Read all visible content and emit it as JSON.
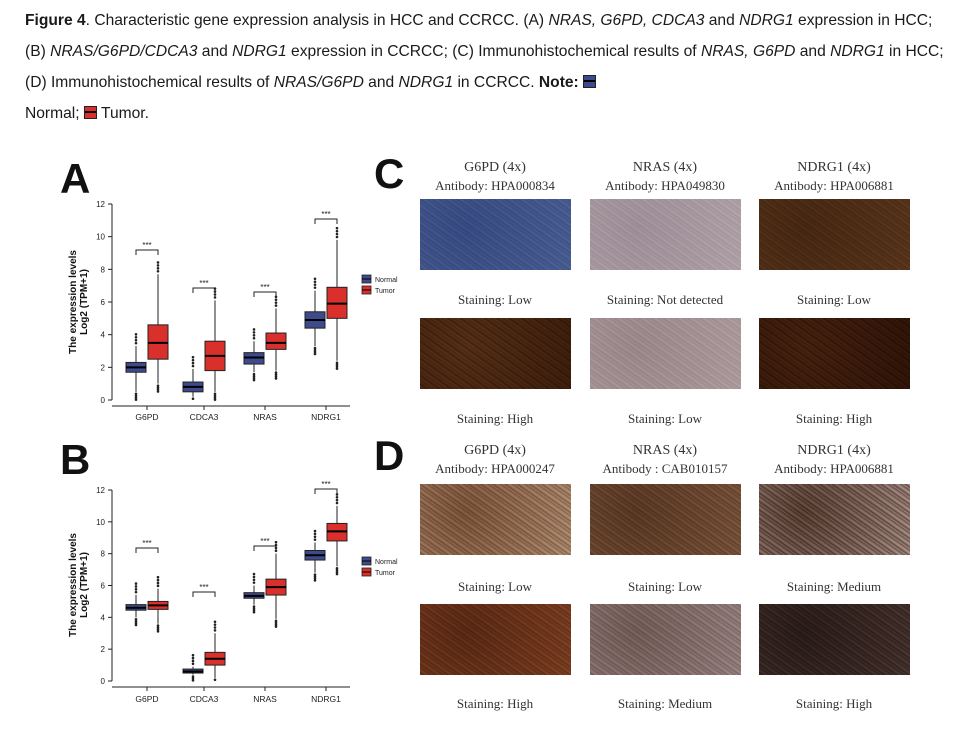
{
  "caption": {
    "figure_label": "Figure 4",
    "part1": ". Characteristic gene expression analysis in HCC and CCRCC. (A) ",
    "it1": "NRAS, G6PD, CDCA3",
    "part2": " and ",
    "it2": "NDRG1",
    "part3": " expression in HCC; (B) ",
    "it3": "NRAS/G6PD/CDCA3",
    "part4": " and ",
    "it4": "NDRG1",
    "part5": " expression in CCRCC; (C) Immunohistochemical results of ",
    "it5": "NRAS, G6PD",
    "part6": " and ",
    "it6": "NDRG1",
    "part7": " in HCC; (D) Immunohistochemical results of ",
    "it7": "NRAS/G6PD",
    "part8": " and ",
    "it8": "NDRG1",
    "part9": " in CCRCC. ",
    "note_label": "Note:",
    "normal_text": "Normal;",
    "tumor_text": "Tumor."
  },
  "colors": {
    "normal": "#3d4a8c",
    "tumor": "#d9302c"
  },
  "panels": {
    "A": "A",
    "B": "B",
    "C": "C",
    "D": "D"
  },
  "chart_data": [
    {
      "type": "box",
      "panel": "A",
      "ylabel_line1": "The expression levels",
      "ylabel_line2": "Log2 (TPM+1)",
      "ylim": [
        0,
        12
      ],
      "yticks": [
        "0",
        "2",
        "4",
        "6",
        "8",
        "10",
        "12"
      ],
      "categories": [
        "G6PD",
        "CDCA3",
        "NRAS",
        "NDRG1"
      ],
      "legend": [
        "Normal",
        "Tumor"
      ],
      "significance": [
        "***",
        "***",
        "***",
        "***"
      ],
      "series": [
        {
          "name": "Normal",
          "boxes": [
            {
              "min": 0.5,
              "q1": 1.7,
              "median": 2.0,
              "q3": 2.3,
              "max": 3.3
            },
            {
              "min": 0.2,
              "q1": 0.5,
              "median": 0.8,
              "q3": 1.1,
              "max": 1.9
            },
            {
              "min": 1.7,
              "q1": 2.2,
              "median": 2.6,
              "q3": 2.9,
              "max": 3.6
            },
            {
              "min": 3.3,
              "q1": 4.4,
              "median": 4.9,
              "q3": 5.4,
              "max": 6.7
            }
          ]
        },
        {
          "name": "Tumor",
          "boxes": [
            {
              "min": 1.0,
              "q1": 2.5,
              "median": 3.5,
              "q3": 4.6,
              "max": 7.7
            },
            {
              "min": 0.5,
              "q1": 1.8,
              "median": 2.7,
              "q3": 3.6,
              "max": 6.1
            },
            {
              "min": 1.8,
              "q1": 3.1,
              "median": 3.5,
              "q3": 4.1,
              "max": 5.6
            },
            {
              "min": 2.4,
              "q1": 5.0,
              "median": 5.9,
              "q3": 6.9,
              "max": 9.8
            }
          ]
        }
      ]
    },
    {
      "type": "box",
      "panel": "B",
      "ylabel_line1": "The expression levels",
      "ylabel_line2": "Log2 (TPM+1)",
      "ylim": [
        0,
        12
      ],
      "yticks": [
        "0",
        "2",
        "4",
        "6",
        "8",
        "10",
        "12"
      ],
      "categories": [
        "G6PD",
        "CDCA3",
        "NRAS",
        "NDRG1"
      ],
      "legend": [
        "Normal",
        "Tumor"
      ],
      "significance": [
        "***",
        "***",
        "***",
        "***"
      ],
      "series": [
        {
          "name": "Normal",
          "boxes": [
            {
              "min": 4.0,
              "q1": 4.45,
              "median": 4.6,
              "q3": 4.8,
              "max": 5.4
            },
            {
              "min": 0.4,
              "q1": 0.5,
              "median": 0.6,
              "q3": 0.75,
              "max": 0.9
            },
            {
              "min": 4.8,
              "q1": 5.2,
              "median": 5.35,
              "q3": 5.55,
              "max": 6.0
            },
            {
              "min": 6.8,
              "q1": 7.6,
              "median": 7.9,
              "q3": 8.2,
              "max": 8.7
            }
          ]
        },
        {
          "name": "Tumor",
          "boxes": [
            {
              "min": 3.6,
              "q1": 4.5,
              "median": 4.75,
              "q3": 5.0,
              "max": 5.8
            },
            {
              "min": 0.2,
              "q1": 1.0,
              "median": 1.4,
              "q3": 1.8,
              "max": 3.0
            },
            {
              "min": 3.9,
              "q1": 5.4,
              "median": 5.9,
              "q3": 6.4,
              "max": 8.0
            },
            {
              "min": 7.2,
              "q1": 8.8,
              "median": 9.4,
              "q3": 9.9,
              "max": 11.0
            }
          ]
        }
      ]
    }
  ],
  "ihc": {
    "C": {
      "columns": [
        {
          "gene": "G6PD (4x)",
          "antibody": "Antibody: HPA000834",
          "top_staining": "Staining: Low",
          "bottom_staining": "Staining: High"
        },
        {
          "gene": "NRAS (4x)",
          "antibody": "Antibody: HPA049830",
          "top_staining": "Staining: Not detected",
          "bottom_staining": "Staining: Low"
        },
        {
          "gene": "NDRG1 (4x)",
          "antibody": "Antibody: HPA006881",
          "top_staining": "Staining: Low",
          "bottom_staining": "Staining: High"
        }
      ]
    },
    "D": {
      "columns": [
        {
          "gene": "G6PD (4x)",
          "antibody": "Antibody: HPA000247",
          "top_staining": "Staining: Low",
          "bottom_staining": "Staining: High"
        },
        {
          "gene": "NRAS (4x)",
          "antibody": "Antibody : CAB010157",
          "top_staining": "Staining: Low",
          "bottom_staining": "Staining: Medium"
        },
        {
          "gene": "NDRG1 (4x)",
          "antibody": "Antibody: HPA006881",
          "top_staining": "Staining: Medium",
          "bottom_staining": "Staining: High"
        }
      ]
    }
  }
}
